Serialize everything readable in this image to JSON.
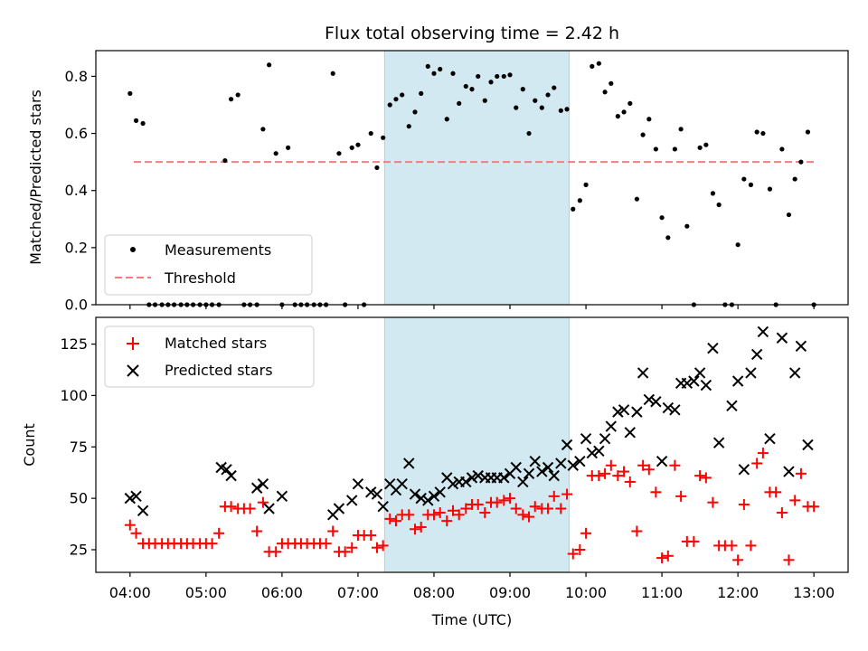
{
  "chart_data": [
    {
      "type": "scatter",
      "title": "Flux total observing time = 2.42 h",
      "xlabel": "",
      "ylabel": "Matched/Predicted stars",
      "xlim": [
        3.55,
        13.45
      ],
      "ylim": [
        0,
        0.89
      ],
      "yticks": [
        0.0,
        0.2,
        0.4,
        0.6,
        0.8
      ],
      "ytick_labels": [
        "0.0",
        "0.2",
        "0.4",
        "0.6",
        "0.8"
      ],
      "shaded_region": {
        "x": [
          7.35,
          9.78
        ],
        "color": "#d3e9f1"
      },
      "threshold": {
        "name": "Threshold",
        "value": 0.5,
        "x": [
          4.05,
          13.0
        ],
        "color": "#f08080"
      },
      "series": [
        {
          "name": "Measurements",
          "color": "#000000",
          "x": [
            4.0,
            4.08,
            4.17,
            4.25,
            4.33,
            4.42,
            4.5,
            4.58,
            4.67,
            4.75,
            4.83,
            4.92,
            5.0,
            5.08,
            5.17,
            5.25,
            5.33,
            5.42,
            5.5,
            5.58,
            5.67,
            5.75,
            5.83,
            5.92,
            6.0,
            6.08,
            6.17,
            6.25,
            6.33,
            6.42,
            6.5,
            6.58,
            6.67,
            6.75,
            6.83,
            6.92,
            7.0,
            7.08,
            7.17,
            7.25,
            7.33,
            7.42,
            7.5,
            7.58,
            7.67,
            7.75,
            7.83,
            7.92,
            8.0,
            8.08,
            8.17,
            8.25,
            8.33,
            8.42,
            8.5,
            8.58,
            8.67,
            8.75,
            8.83,
            8.92,
            9.0,
            9.08,
            9.17,
            9.25,
            9.33,
            9.42,
            9.5,
            9.58,
            9.67,
            9.75,
            9.83,
            9.92,
            10.0,
            10.08,
            10.17,
            10.25,
            10.33,
            10.42,
            10.5,
            10.58,
            10.67,
            10.75,
            10.83,
            10.92,
            11.0,
            11.08,
            11.17,
            11.25,
            11.33,
            11.42,
            11.5,
            11.58,
            11.67,
            11.75,
            11.83,
            11.92,
            12.0,
            12.08,
            12.17,
            12.25,
            12.33,
            12.42,
            12.5,
            12.58,
            12.67,
            12.75,
            12.83,
            12.92,
            13.0
          ],
          "y": [
            0.74,
            0.645,
            0.635,
            0.0,
            0.0,
            0.0,
            0.0,
            0.0,
            0.0,
            0.0,
            0.0,
            0.0,
            0.0,
            0.0,
            0.0,
            0.505,
            0.72,
            0.735,
            0.0,
            0.0,
            0.0,
            0.615,
            0.84,
            0.53,
            0.0,
            0.55,
            0.0,
            0.0,
            0.0,
            0.0,
            0.0,
            0.0,
            0.81,
            0.53,
            0.0,
            0.55,
            0.56,
            0.0,
            0.6,
            0.48,
            0.585,
            0.7,
            0.72,
            0.735,
            0.625,
            0.675,
            0.74,
            0.835,
            0.81,
            0.825,
            0.65,
            0.81,
            0.705,
            0.765,
            0.755,
            0.8,
            0.715,
            0.78,
            0.8,
            0.8,
            0.805,
            0.69,
            0.755,
            0.6,
            0.715,
            0.69,
            0.735,
            0.76,
            0.68,
            0.685,
            0.335,
            0.365,
            0.42,
            0.835,
            0.845,
            0.745,
            0.775,
            0.66,
            0.675,
            0.705,
            0.37,
            0.595,
            0.65,
            0.545,
            0.305,
            0.235,
            0.545,
            0.615,
            0.275,
            0.0,
            0.55,
            0.56,
            0.39,
            0.35,
            0.0,
            0.0,
            0.21,
            0.44,
            0.42,
            0.605,
            0.6,
            0.405,
            0.0,
            0.545,
            0.315,
            0.44,
            0.5,
            0.605,
            0.0
          ]
        }
      ],
      "legend": {
        "placement": "lower-left",
        "entries": [
          "Measurements",
          "Threshold"
        ]
      }
    },
    {
      "type": "scatter",
      "title": "",
      "xlabel": "Time (UTC)",
      "ylabel": "Count",
      "xlim": [
        3.55,
        13.45
      ],
      "ylim": [
        14,
        138
      ],
      "xticks": [
        4,
        5,
        6,
        7,
        8,
        9,
        10,
        11,
        12,
        13
      ],
      "xtick_labels": [
        "04:00",
        "05:00",
        "06:00",
        "07:00",
        "08:00",
        "09:00",
        "10:00",
        "11:00",
        "12:00",
        "13:00"
      ],
      "yticks": [
        25,
        50,
        75,
        100,
        125
      ],
      "ytick_labels": [
        "25",
        "50",
        "75",
        "100",
        "125"
      ],
      "shaded_region": {
        "x": [
          7.35,
          9.78
        ],
        "color": "#d3e9f1"
      },
      "series": [
        {
          "name": "Matched stars",
          "marker": "+",
          "color": "#ff0000",
          "x": [
            4.0,
            4.08,
            4.17,
            4.25,
            4.33,
            4.42,
            4.5,
            4.58,
            4.67,
            4.75,
            4.83,
            4.92,
            5.0,
            5.08,
            5.17,
            5.25,
            5.33,
            5.42,
            5.5,
            5.58,
            5.67,
            5.75,
            5.83,
            5.92,
            6.0,
            6.08,
            6.17,
            6.25,
            6.33,
            6.42,
            6.5,
            6.58,
            6.67,
            6.75,
            6.83,
            6.92,
            7.0,
            7.08,
            7.17,
            7.25,
            7.33,
            7.42,
            7.5,
            7.58,
            7.67,
            7.75,
            7.83,
            7.92,
            8.0,
            8.08,
            8.17,
            8.25,
            8.33,
            8.42,
            8.5,
            8.58,
            8.67,
            8.75,
            8.83,
            8.92,
            9.0,
            9.08,
            9.17,
            9.25,
            9.33,
            9.42,
            9.5,
            9.58,
            9.67,
            9.75,
            9.83,
            9.92,
            10.0,
            10.08,
            10.17,
            10.25,
            10.33,
            10.42,
            10.5,
            10.58,
            10.67,
            10.75,
            10.83,
            10.92,
            11.0,
            11.08,
            11.17,
            11.25,
            11.33,
            11.42,
            11.5,
            11.58,
            11.67,
            11.75,
            11.83,
            11.92,
            12.0,
            12.08,
            12.17,
            12.25,
            12.33,
            12.42,
            12.5,
            12.58,
            12.67,
            12.75,
            12.83,
            12.92,
            13.0
          ],
          "y": [
            37,
            33,
            28,
            28,
            28,
            28,
            28,
            28,
            28,
            28,
            28,
            28,
            28,
            28,
            33,
            46,
            46,
            45,
            45,
            45,
            34,
            48,
            24,
            24,
            28,
            28,
            28,
            28,
            28,
            28,
            28,
            28,
            34,
            24,
            24,
            26,
            32,
            32,
            32,
            26,
            27,
            40,
            39,
            42,
            42,
            35,
            36,
            42,
            42,
            43,
            39,
            44,
            42,
            45,
            47,
            47,
            43,
            48,
            48,
            49,
            50,
            45,
            42,
            41,
            46,
            45,
            45,
            51,
            45,
            52,
            23,
            25,
            33,
            61,
            61,
            62,
            66,
            61,
            63,
            58,
            34,
            66,
            64,
            53,
            21,
            22,
            66,
            51,
            29,
            29,
            61,
            60,
            48,
            27,
            27,
            27,
            20,
            47,
            27,
            67,
            72,
            53,
            53,
            43,
            20,
            49,
            62,
            46,
            46
          ]
        },
        {
          "name": "Predicted stars",
          "marker": "x",
          "color": "#000000",
          "x": [
            4.0,
            4.08,
            4.17,
            5.2,
            5.27,
            5.33,
            5.67,
            5.75,
            5.83,
            6.0,
            6.67,
            6.75,
            6.92,
            7.0,
            7.17,
            7.25,
            7.33,
            7.42,
            7.5,
            7.58,
            7.67,
            7.75,
            7.83,
            7.92,
            8.0,
            8.08,
            8.17,
            8.25,
            8.33,
            8.42,
            8.5,
            8.58,
            8.67,
            8.75,
            8.83,
            8.92,
            9.0,
            9.08,
            9.17,
            9.25,
            9.33,
            9.42,
            9.5,
            9.58,
            9.67,
            9.75,
            9.83,
            9.92,
            10.0,
            10.08,
            10.17,
            10.25,
            10.33,
            10.42,
            10.5,
            10.58,
            10.67,
            10.75,
            10.83,
            10.92,
            11.0,
            11.08,
            11.17,
            11.25,
            11.33,
            11.42,
            11.5,
            11.58,
            11.67,
            11.75,
            11.92,
            12.0,
            12.08,
            12.17,
            12.25,
            12.33,
            12.42,
            12.58,
            12.67,
            12.75,
            12.83,
            12.92
          ],
          "y": [
            50,
            51,
            44,
            65,
            64,
            61,
            55,
            57,
            45,
            51,
            42,
            45,
            49,
            57,
            53,
            52,
            46,
            57,
            54,
            57,
            67,
            52,
            50,
            49,
            51,
            53,
            60,
            57,
            58,
            58,
            60,
            61,
            60,
            60,
            60,
            60,
            62,
            65,
            58,
            62,
            68,
            63,
            65,
            61,
            67,
            76,
            66,
            68,
            79,
            72,
            73,
            79,
            85,
            92,
            93,
            82,
            92,
            111,
            98,
            97,
            68,
            94,
            93,
            106,
            106,
            107,
            111,
            105,
            123,
            77,
            95,
            107,
            64,
            111,
            120,
            131,
            79,
            128,
            63,
            111,
            124,
            76
          ]
        }
      ],
      "legend": {
        "placement": "top-left",
        "entries": [
          "Matched stars",
          "Predicted stars"
        ]
      }
    }
  ]
}
